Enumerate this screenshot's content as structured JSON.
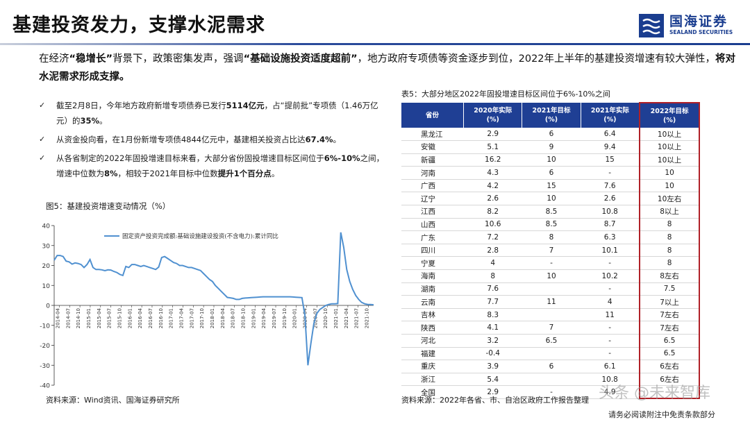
{
  "title": "基建投资发力，支撑水泥需求",
  "logo": {
    "cn": "国海证券",
    "en": "SEALAND SECURITIES"
  },
  "intro": {
    "p1": "在经济",
    "p2": "“稳增长”",
    "p3": "背景下，政策密集发声，强调",
    "p4": "“基础设施投资适度超前”",
    "p5": "，地方政府专项债等资金逐步到位，2022年上半年的基建投资增速有较大弹性，",
    "p6": "将对水泥需求形成支撑。"
  },
  "bullets": [
    {
      "a": "截至2月8日，今年地方政府新增专项债券已发行",
      "b": "5114亿元",
      "c": "，占“提前批”专项债（1.46万亿元）的",
      "d": "35%",
      "e": "。"
    },
    {
      "a": "从资金投向看，在1月份新增专项债4844亿元中，基建相关投资占比达",
      "b": "67.4%",
      "c": "。",
      "d": "",
      "e": ""
    },
    {
      "a": "从各省制定的2022年固投增速目标来看，大部分省份固投增速目标区间位于",
      "b": "6%-10%",
      "c": "之间，增速中位数为",
      "d": "8%",
      "e": "，相较于2021年目标中位数",
      "f": "提升1个百分点",
      "g": "。"
    }
  ],
  "figure_title": "图5：基建投资增速变动情况（%）",
  "source_left": "资料来源：Wind资讯、国海证券研究所",
  "table_title": "表5：大部分地区2022年固投增速目标区间位于6%-10%之间",
  "table": {
    "headers": [
      "省份",
      "2020年实际\n(%)",
      "2021年目标\n(%)",
      "2021年实际\n(%)",
      "2022年目标\n(%)"
    ],
    "rows": [
      [
        "黑龙江",
        "2.9",
        "6",
        "6.4",
        "10以上"
      ],
      [
        "安徽",
        "5.1",
        "9",
        "9.4",
        "10以上"
      ],
      [
        "新疆",
        "16.2",
        "10",
        "15",
        "10以上"
      ],
      [
        "河南",
        "4.3",
        "6",
        "-",
        "10"
      ],
      [
        "广西",
        "4.2",
        "15",
        "7.6",
        "10"
      ],
      [
        "辽宁",
        "2.6",
        "10",
        "2.6",
        "10左右"
      ],
      [
        "江西",
        "8.2",
        "8.5",
        "10.8",
        "8以上"
      ],
      [
        "山西",
        "10.6",
        "8.5",
        "8.7",
        "8"
      ],
      [
        "广东",
        "7.2",
        "8",
        "6.3",
        "8"
      ],
      [
        "四川",
        "2.8",
        "7",
        "10.1",
        "8"
      ],
      [
        "宁夏",
        "4",
        "-",
        "-",
        "8"
      ],
      [
        "海南",
        "8",
        "10",
        "10.2",
        "8左右"
      ],
      [
        "湖南",
        "7.6",
        "",
        "-",
        "7.5"
      ],
      [
        "云南",
        "7.7",
        "11",
        "4",
        "7以上"
      ],
      [
        "吉林",
        "8.3",
        "",
        "11",
        "7左右"
      ],
      [
        "陕西",
        "4.1",
        "7",
        "-",
        "7左右"
      ],
      [
        "河北",
        "3.2",
        "6.5",
        "-",
        "6.5"
      ],
      [
        "福建",
        "-0.4",
        "",
        "-",
        "6.5"
      ],
      [
        "重庆",
        "3.9",
        "6",
        "6.1",
        "6左右"
      ],
      [
        "浙江",
        "5.4",
        "",
        "10.8",
        "6左右"
      ],
      [
        "全国",
        "2.9",
        "-",
        "4.9",
        ""
      ]
    ]
  },
  "source_right": "资料来源：2022年各省、市、自治区政府工作报告整理",
  "watermark": "头条 @未来智库",
  "disclaimer": "请务必阅读附注中免责条款部分",
  "chart_data": {
    "type": "line",
    "series": [
      {
        "name": "固定资产投资完成额:基础设施建设投资(不含电力):累计同比",
        "color": "#4f90d0",
        "values": [
          22.6,
          25.0,
          25.0,
          24.5,
          22.2,
          21.8,
          20.7,
          21.3,
          21.0,
          20.5,
          19.0,
          20.5,
          23.0,
          19.0,
          18.0,
          18.0,
          17.8,
          17.4,
          17.8,
          17.7,
          17.0,
          16.5,
          15.5,
          15.0,
          19.5,
          19.0,
          20.5,
          20.5,
          20.0,
          19.5,
          20.0,
          19.5,
          19.0,
          18.5,
          18.0,
          19.2,
          24.0,
          24.5,
          23.5,
          22.5,
          21.5,
          21.0,
          20.0,
          20.0,
          19.5,
          19.0,
          19.0,
          18.5,
          18.0,
          17.5,
          16.0,
          14.5,
          13.0,
          12.0,
          10.0,
          8.5,
          7.0,
          5.5,
          4.0,
          3.8,
          3.5,
          3.0,
          3.0,
          3.5,
          3.7,
          3.8,
          3.9,
          4.0,
          4.1,
          4.2,
          4.3,
          4.3,
          4.3,
          4.3,
          4.3,
          4.3,
          4.3,
          4.3,
          4.3,
          4.3,
          4.2,
          4.1,
          4.0,
          3.9,
          -5.0,
          -30.0,
          -19.0,
          -9.0,
          -4.0,
          -2.0,
          -1.0,
          0.0,
          0.5,
          0.8,
          0.8,
          0.9,
          36.6,
          29.0,
          18.0,
          12.0,
          8.0,
          5.0,
          3.0,
          1.5,
          0.8,
          0.5,
          0.4,
          0.3
        ]
      }
    ],
    "x_ticks": [
      "2014-04",
      "2014-07",
      "2014-10",
      "2015-01",
      "2015-04",
      "2015-07",
      "2015-10",
      "2016-01",
      "2016-04",
      "2016-07",
      "2016-10",
      "2017-01",
      "2017-04",
      "2017-07",
      "2017-10",
      "2018-01",
      "2018-04",
      "2018-07",
      "2018-10",
      "2019-01",
      "2019-04",
      "2019-07",
      "2019-10",
      "2020-01",
      "2020-04",
      "2020-07",
      "2020-10",
      "2021-01",
      "2021-04",
      "2021-07",
      "2021-10"
    ],
    "ylim": [
      -40,
      40
    ],
    "y_ticks": [
      -40,
      -30,
      -20,
      -10,
      0,
      10,
      20,
      30,
      40
    ],
    "legend": "top"
  }
}
